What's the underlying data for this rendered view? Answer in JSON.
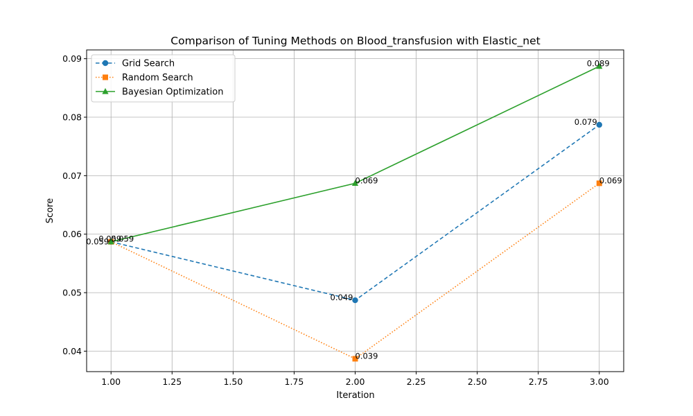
{
  "chart_data": {
    "type": "line",
    "title": "Comparison of Tuning Methods on Blood_transfusion with Elastic_net",
    "xlabel": "Iteration",
    "ylabel": "Score",
    "xlim": [
      0.9,
      3.1
    ],
    "ylim": [
      0.0365,
      0.0915
    ],
    "x": [
      1.0,
      2.0,
      3.0
    ],
    "xticks": [
      1.0,
      1.25,
      1.5,
      1.75,
      2.0,
      2.25,
      2.5,
      2.75,
      3.0
    ],
    "xtick_labels": [
      "1.00",
      "1.25",
      "1.50",
      "1.75",
      "2.00",
      "2.25",
      "2.50",
      "2.75",
      "3.00"
    ],
    "yticks": [
      0.04,
      0.05,
      0.06,
      0.07,
      0.08,
      0.09
    ],
    "ytick_labels": [
      "0.04",
      "0.05",
      "0.06",
      "0.07",
      "0.08",
      "0.09"
    ],
    "grid": true,
    "legend_position": "top-left",
    "series": [
      {
        "name": "Grid Search",
        "values": [
          0.0587,
          0.0487,
          0.0787
        ],
        "labels": [
          "0.059",
          "0.049",
          "0.079"
        ],
        "color": "#1f77b4",
        "line_style": "dashed",
        "marker": "circle"
      },
      {
        "name": "Random Search",
        "values": [
          0.0587,
          0.0387,
          0.0687
        ],
        "labels": [
          "0.059",
          "0.039",
          "0.069"
        ],
        "color": "#ff7f0e",
        "line_style": "dotted",
        "marker": "square"
      },
      {
        "name": "Bayesian Optimization",
        "values": [
          0.0587,
          0.0687,
          0.0887
        ],
        "labels": [
          "0.059",
          "0.069",
          "0.089"
        ],
        "color": "#2ca02c",
        "line_style": "solid",
        "marker": "triangle"
      }
    ]
  }
}
